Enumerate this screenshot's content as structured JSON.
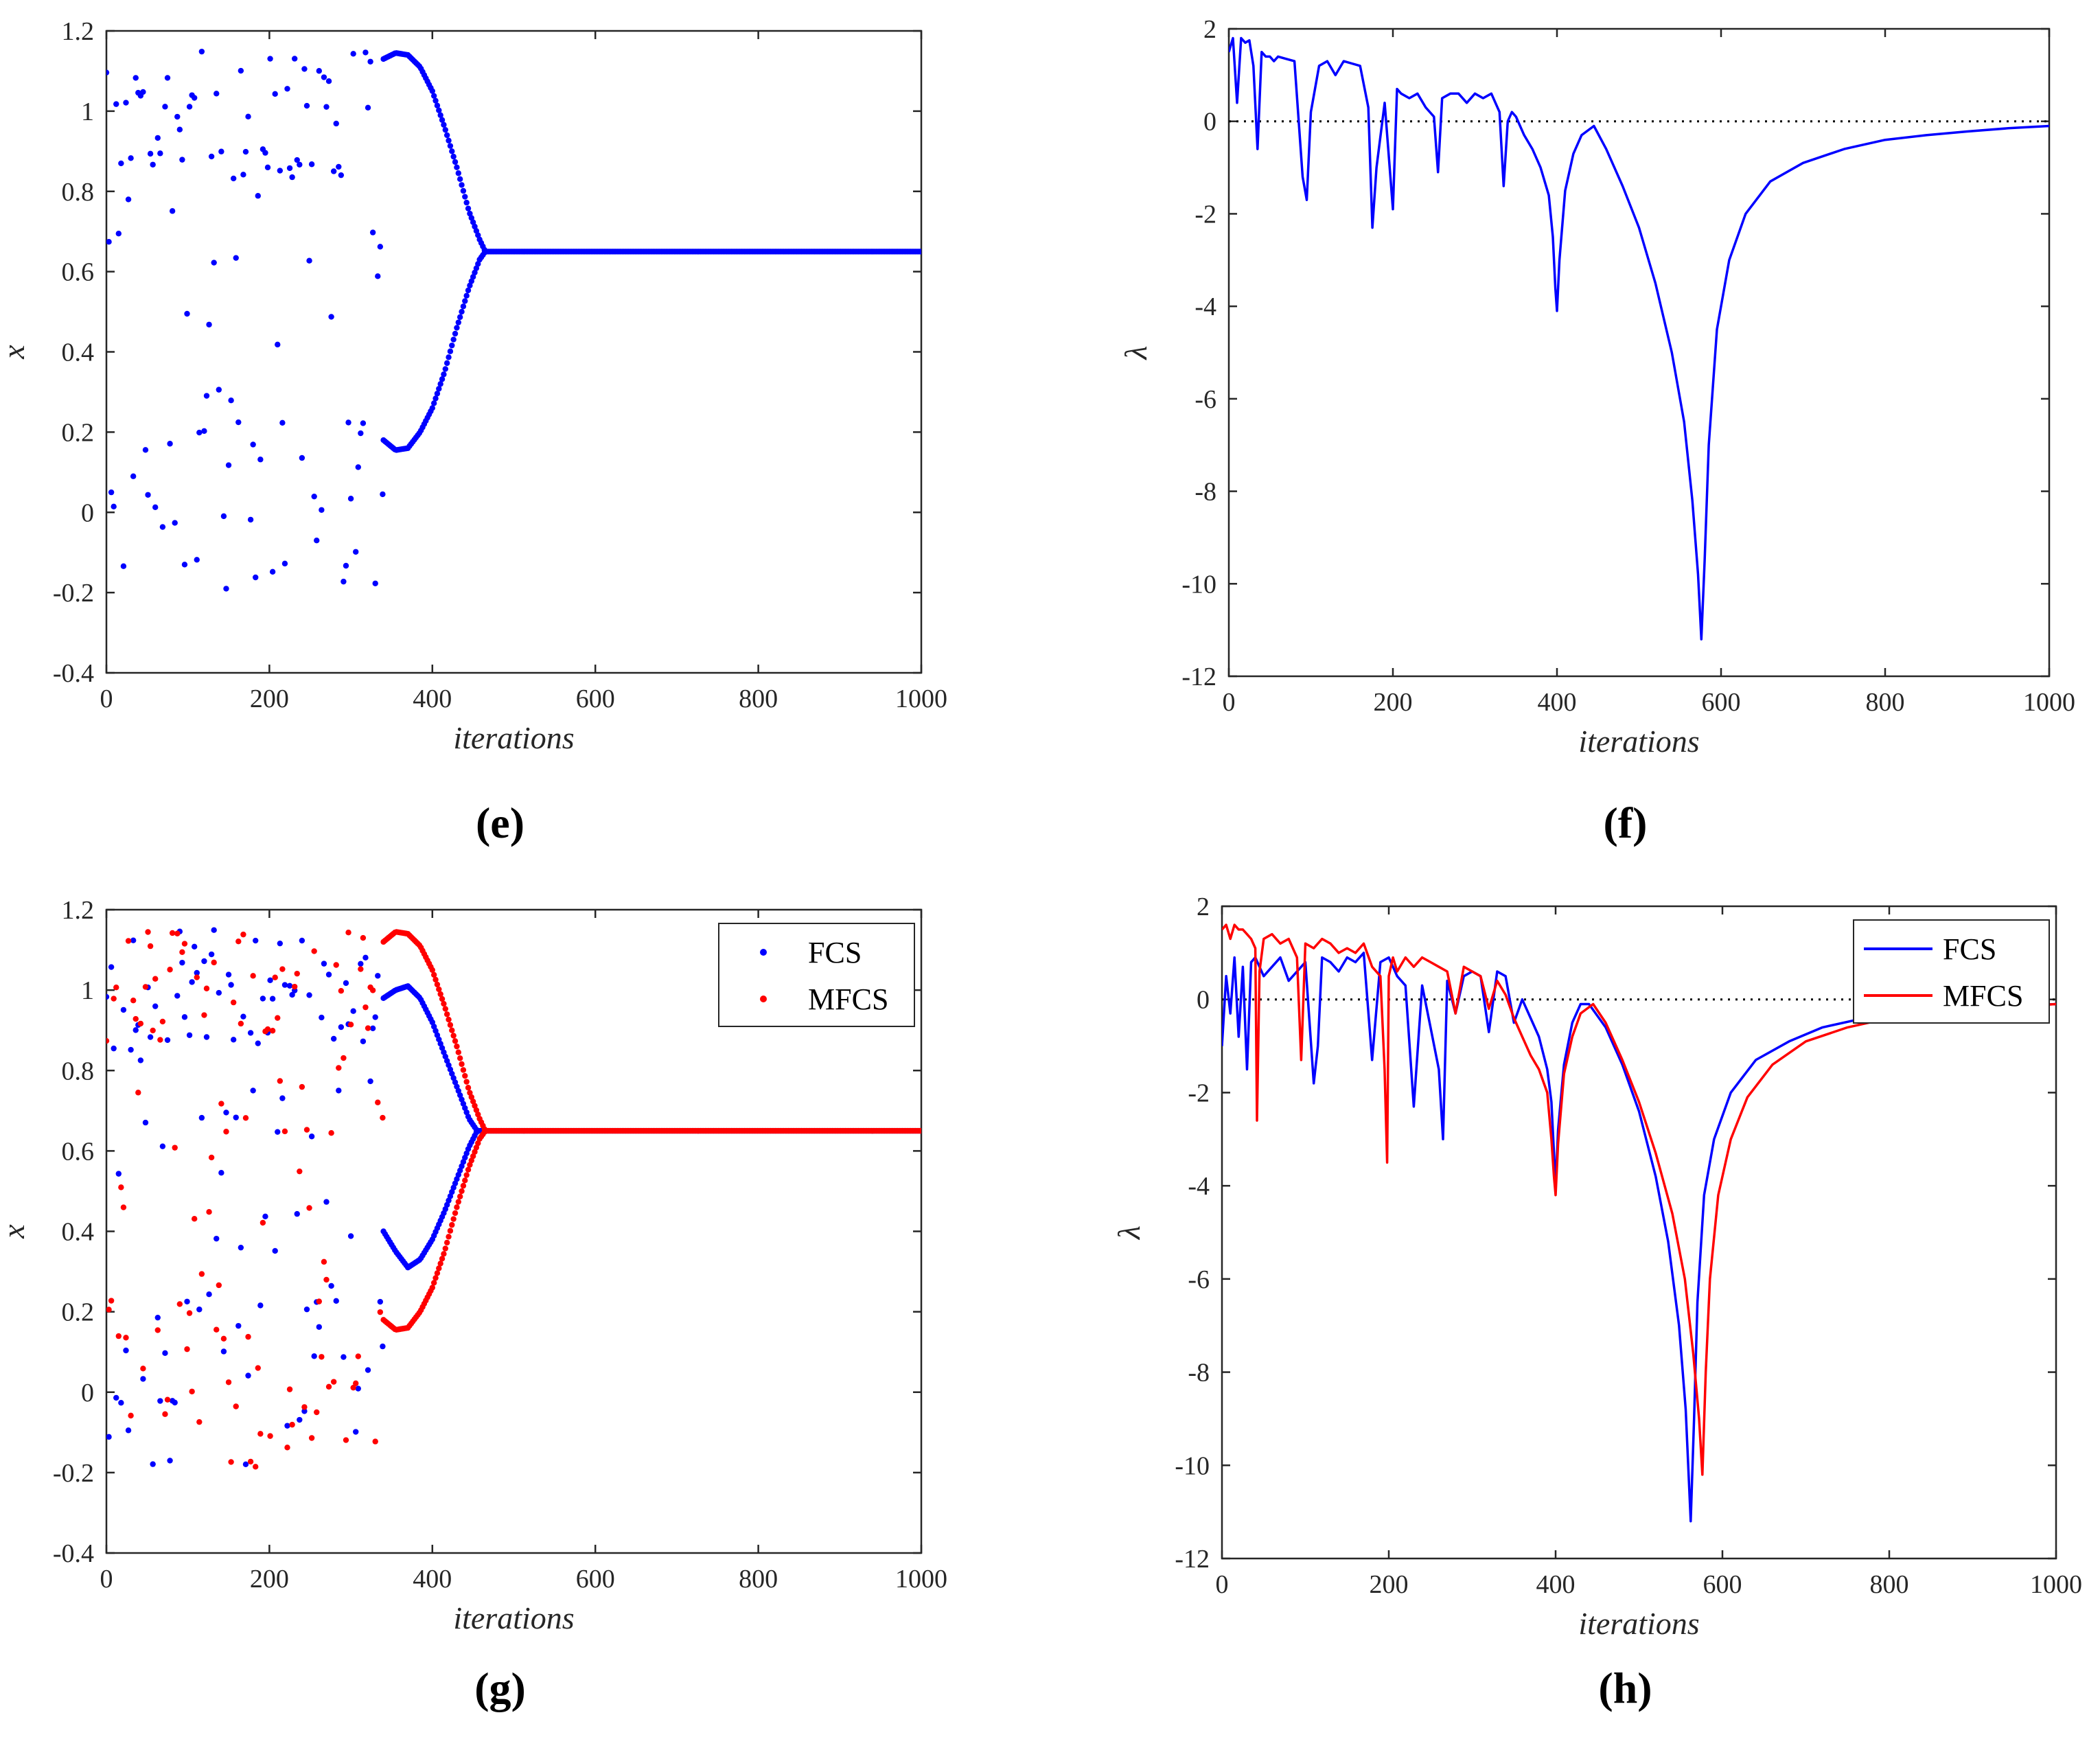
{
  "figure": {
    "colors": {
      "fcs": "#0000FF",
      "mfcs": "#FF0000",
      "axis": "#262626",
      "zero_line": "#000000"
    }
  },
  "chart_data": [
    {
      "id": "e",
      "type": "scatter",
      "panel_label": "(e)",
      "title": "",
      "xlabel": "iterations",
      "ylabel": "x",
      "xlim": [
        0,
        1000
      ],
      "ylim": [
        -0.4,
        1.2
      ],
      "xticks": [
        "0",
        "200",
        "400",
        "600",
        "800",
        "1000"
      ],
      "yticks": [
        "-0.4",
        "-0.2",
        "0",
        "0.2",
        "0.4",
        "0.6",
        "0.8",
        "1",
        "1.2"
      ],
      "legend": [],
      "series": [
        {
          "name": "x",
          "color": "#0000FF",
          "description": "chaotic scatter 0-340, period-2 branches 340-465 converging to fixed point 0.65",
          "fixed_point": 0.65,
          "chaotic_end": 340,
          "upper_branch": {
            "x": [
              340,
              355,
              370,
              385,
              400,
              415,
              430,
              445,
              458,
              465
            ],
            "y": [
              1.13,
              1.145,
              1.14,
              1.11,
              1.05,
              0.96,
              0.86,
              0.75,
              0.68,
              0.65
            ]
          },
          "lower_branch": {
            "x": [
              340,
              355,
              370,
              385,
              400,
              415,
              430,
              445,
              458,
              465
            ],
            "y": [
              0.18,
              0.155,
              0.16,
              0.2,
              0.26,
              0.35,
              0.46,
              0.56,
              0.63,
              0.65
            ]
          }
        }
      ]
    },
    {
      "id": "f",
      "type": "line",
      "panel_label": "(f)",
      "title": "",
      "xlabel": "iterations",
      "ylabel": "λ",
      "xlim": [
        0,
        1000
      ],
      "ylim": [
        -12,
        2
      ],
      "xticks": [
        "0",
        "200",
        "400",
        "600",
        "800",
        "1000"
      ],
      "yticks": [
        "-12",
        "-10",
        "-8",
        "-6",
        "-4",
        "-2",
        "0",
        "2"
      ],
      "legend": [],
      "zero_line": true,
      "series": [
        {
          "name": "λ",
          "color": "#0000FF",
          "x": [
            0,
            5,
            10,
            15,
            20,
            25,
            30,
            35,
            40,
            45,
            50,
            55,
            60,
            70,
            80,
            90,
            95,
            100,
            110,
            120,
            130,
            140,
            150,
            160,
            170,
            175,
            180,
            190,
            200,
            205,
            210,
            220,
            230,
            240,
            250,
            255,
            260,
            270,
            280,
            290,
            300,
            310,
            320,
            330,
            335,
            340,
            345,
            350,
            360,
            370,
            380,
            390,
            395,
            398,
            400,
            403,
            410,
            420,
            430,
            445,
            460,
            480,
            500,
            520,
            540,
            555,
            565,
            572,
            576,
            580,
            585,
            595,
            610,
            630,
            660,
            700,
            750,
            800,
            850,
            900,
            950,
            1000
          ],
          "values": [
            1.5,
            1.8,
            0.4,
            1.8,
            1.7,
            1.75,
            1.2,
            -0.6,
            1.5,
            1.4,
            1.4,
            1.3,
            1.4,
            1.35,
            1.3,
            -1.2,
            -1.7,
            0.2,
            1.2,
            1.3,
            1.0,
            1.3,
            1.25,
            1.2,
            0.3,
            -2.3,
            -1.0,
            0.4,
            -1.9,
            0.7,
            0.6,
            0.5,
            0.6,
            0.3,
            0.1,
            -1.1,
            0.5,
            0.6,
            0.6,
            0.4,
            0.6,
            0.5,
            0.6,
            0.2,
            -1.4,
            0.0,
            0.2,
            0.1,
            -0.3,
            -0.6,
            -1.0,
            -1.6,
            -2.5,
            -3.6,
            -4.1,
            -3.0,
            -1.5,
            -0.7,
            -0.3,
            -0.1,
            -0.6,
            -1.4,
            -2.3,
            -3.5,
            -5.0,
            -6.5,
            -8.2,
            -9.8,
            -11.2,
            -9.5,
            -7.0,
            -4.5,
            -3.0,
            -2.0,
            -1.3,
            -0.9,
            -0.6,
            -0.4,
            -0.3,
            -0.22,
            -0.15,
            -0.1
          ]
        }
      ]
    },
    {
      "id": "g",
      "type": "scatter",
      "panel_label": "(g)",
      "title": "",
      "xlabel": "iterations",
      "ylabel": "x",
      "xlim": [
        0,
        1000
      ],
      "ylim": [
        -0.4,
        1.2
      ],
      "xticks": [
        "0",
        "200",
        "400",
        "600",
        "800",
        "1000"
      ],
      "yticks": [
        "-0.4",
        "-0.2",
        "0",
        "0.2",
        "0.4",
        "0.6",
        "0.8",
        "1",
        "1.2"
      ],
      "legend": [
        "FCS",
        "MFCS"
      ],
      "series": [
        {
          "name": "FCS",
          "color": "#0000FF",
          "fixed_point": 0.65,
          "chaotic_end": 340,
          "upper_branch": {
            "x": [
              340,
              355,
              370,
              385,
              400,
              415,
              430,
              445,
              455
            ],
            "y": [
              0.98,
              1.0,
              1.01,
              0.98,
              0.92,
              0.84,
              0.76,
              0.68,
              0.65
            ]
          },
          "lower_branch": {
            "x": [
              340,
              355,
              370,
              385,
              400,
              415,
              430,
              445,
              455
            ],
            "y": [
              0.4,
              0.35,
              0.31,
              0.33,
              0.38,
              0.45,
              0.53,
              0.61,
              0.65
            ]
          }
        },
        {
          "name": "MFCS",
          "color": "#FF0000",
          "fixed_point": 0.65,
          "chaotic_end": 340,
          "upper_branch": {
            "x": [
              340,
              355,
              370,
              385,
              400,
              415,
              430,
              445,
              458,
              465
            ],
            "y": [
              1.12,
              1.145,
              1.14,
              1.11,
              1.05,
              0.96,
              0.86,
              0.75,
              0.68,
              0.65
            ]
          },
          "lower_branch": {
            "x": [
              340,
              355,
              370,
              385,
              400,
              415,
              430,
              445,
              458,
              465
            ],
            "y": [
              0.18,
              0.155,
              0.16,
              0.2,
              0.26,
              0.35,
              0.46,
              0.56,
              0.63,
              0.65
            ]
          }
        }
      ]
    },
    {
      "id": "h",
      "type": "line",
      "panel_label": "(h)",
      "title": "",
      "xlabel": "iterations",
      "ylabel": "λ",
      "xlim": [
        0,
        1000
      ],
      "ylim": [
        -12,
        2
      ],
      "xticks": [
        "0",
        "200",
        "400",
        "600",
        "800",
        "1000"
      ],
      "yticks": [
        "-12",
        "-10",
        "-8",
        "-6",
        "-4",
        "-2",
        "0",
        "2"
      ],
      "legend": [
        "FCS",
        "MFCS"
      ],
      "zero_line": true,
      "series": [
        {
          "name": "FCS",
          "color": "#0000FF",
          "x": [
            0,
            5,
            10,
            15,
            20,
            25,
            30,
            35,
            40,
            50,
            60,
            70,
            80,
            90,
            100,
            110,
            115,
            120,
            130,
            140,
            150,
            160,
            170,
            180,
            190,
            200,
            210,
            220,
            230,
            240,
            250,
            260,
            265,
            270,
            280,
            290,
            300,
            310,
            320,
            330,
            340,
            350,
            360,
            370,
            380,
            390,
            395,
            398,
            400,
            403,
            410,
            420,
            430,
            440,
            460,
            480,
            500,
            520,
            535,
            548,
            556,
            562,
            566,
            570,
            578,
            590,
            610,
            640,
            680,
            720,
            770,
            820,
            880,
            940,
            1000
          ],
          "values": [
            -1.0,
            0.5,
            -0.3,
            0.9,
            -0.8,
            0.7,
            -1.5,
            0.8,
            0.9,
            0.5,
            0.7,
            0.9,
            0.4,
            0.6,
            0.8,
            -1.8,
            -1.0,
            0.9,
            0.8,
            0.6,
            0.9,
            0.8,
            1.0,
            -1.3,
            0.8,
            0.9,
            0.5,
            0.3,
            -2.3,
            0.3,
            -0.6,
            -1.5,
            -3.0,
            0.4,
            -0.3,
            0.5,
            0.6,
            0.5,
            -0.7,
            0.6,
            0.5,
            -0.5,
            0.0,
            -0.4,
            -0.8,
            -1.5,
            -2.2,
            -3.3,
            -4.0,
            -2.8,
            -1.4,
            -0.5,
            -0.1,
            -0.1,
            -0.6,
            -1.4,
            -2.4,
            -3.8,
            -5.2,
            -7.0,
            -8.8,
            -11.2,
            -9.0,
            -6.5,
            -4.2,
            -3.0,
            -2.0,
            -1.3,
            -0.9,
            -0.6,
            -0.4,
            -0.3,
            -0.2,
            -0.15,
            -0.1
          ]
        },
        {
          "name": "MFCS",
          "color": "#FF0000",
          "x": [
            0,
            5,
            10,
            15,
            20,
            25,
            30,
            35,
            40,
            42,
            45,
            50,
            60,
            70,
            80,
            90,
            95,
            100,
            110,
            120,
            130,
            140,
            150,
            160,
            170,
            180,
            190,
            195,
            198,
            200,
            205,
            210,
            220,
            230,
            240,
            250,
            260,
            270,
            280,
            290,
            300,
            310,
            320,
            330,
            340,
            350,
            360,
            370,
            380,
            390,
            395,
            398,
            400,
            403,
            410,
            420,
            430,
            445,
            460,
            480,
            500,
            520,
            540,
            555,
            565,
            572,
            576,
            580,
            585,
            595,
            610,
            630,
            660,
            700,
            750,
            800,
            850,
            900,
            950,
            1000
          ],
          "values": [
            1.5,
            1.6,
            1.3,
            1.6,
            1.5,
            1.5,
            1.4,
            1.3,
            1.1,
            -2.6,
            0.6,
            1.3,
            1.4,
            1.2,
            1.3,
            0.9,
            -1.3,
            1.2,
            1.1,
            1.3,
            1.2,
            1.0,
            1.1,
            1.0,
            1.2,
            0.7,
            0.5,
            -1.5,
            -3.5,
            0.5,
            0.9,
            0.6,
            0.9,
            0.7,
            0.9,
            0.8,
            0.7,
            0.6,
            -0.3,
            0.7,
            0.6,
            0.5,
            -0.2,
            0.4,
            0.1,
            -0.4,
            -0.8,
            -1.2,
            -1.5,
            -2.0,
            -3.0,
            -3.8,
            -4.2,
            -3.1,
            -1.6,
            -0.8,
            -0.3,
            -0.1,
            -0.5,
            -1.3,
            -2.2,
            -3.3,
            -4.6,
            -6.0,
            -7.6,
            -9.0,
            -10.2,
            -8.0,
            -6.0,
            -4.2,
            -3.0,
            -2.1,
            -1.4,
            -0.9,
            -0.6,
            -0.4,
            -0.3,
            -0.2,
            -0.15,
            -0.1
          ]
        }
      ]
    }
  ]
}
